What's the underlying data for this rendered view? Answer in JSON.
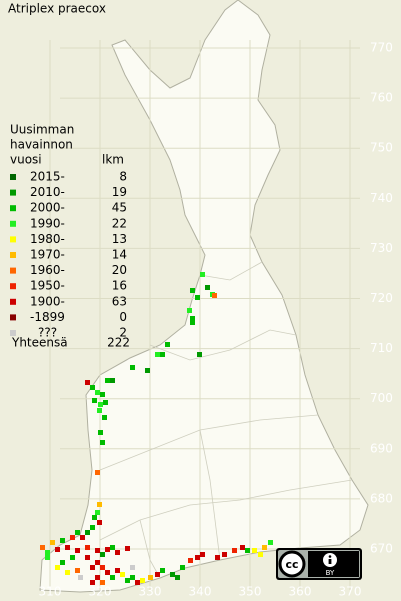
{
  "title": "Atriplex praecox",
  "legend": {
    "heading": [
      "Uusimman",
      "havainnon",
      "vuosi"
    ],
    "count_heading": "lkm",
    "items": [
      {
        "label": "2015-",
        "count": 8,
        "color": "#006600"
      },
      {
        "label": "2010-",
        "count": 19,
        "color": "#009900"
      },
      {
        "label": "2000-",
        "count": 45,
        "color": "#00bb00"
      },
      {
        "label": "1990-",
        "count": 22,
        "color": "#22ee22"
      },
      {
        "label": "1980-",
        "count": 13,
        "color": "#ffff00"
      },
      {
        "label": "1970-",
        "count": 14,
        "color": "#ffbb00"
      },
      {
        "label": "1960-",
        "count": 20,
        "color": "#ff6600"
      },
      {
        "label": "1950-",
        "count": 16,
        "color": "#ee2200"
      },
      {
        "label": "1900-",
        "count": 63,
        "color": "#cc0000"
      },
      {
        "label": "-1899",
        "count": 0,
        "color": "#880000"
      },
      {
        "label": "???",
        "count": 2,
        "color": "#cccccc"
      }
    ],
    "total_label": "Yhteensä",
    "total": 222
  },
  "axes": {
    "x_labels": [
      "310",
      "320",
      "330",
      "340",
      "350",
      "360",
      "370"
    ],
    "y_labels": [
      "770",
      "760",
      "750",
      "740",
      "730",
      "720",
      "710",
      "700",
      "690",
      "680",
      "670"
    ]
  },
  "license": {
    "cc": "cc",
    "by": "BY"
  }
}
